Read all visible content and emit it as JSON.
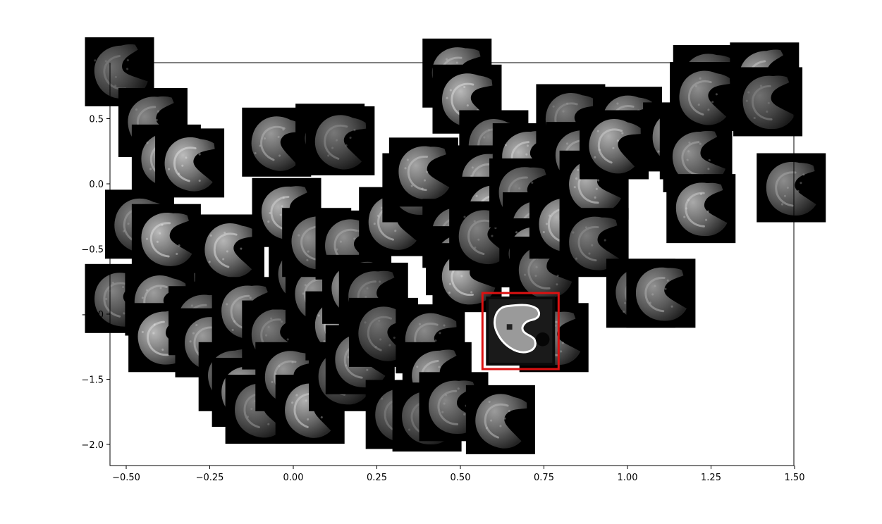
{
  "chart_data": {
    "type": "scatter",
    "title": "",
    "xlabel": "",
    "ylabel": "",
    "xlim": [
      -0.55,
      1.55
    ],
    "ylim": [
      -2.15,
      0.9
    ],
    "grid": false,
    "xticks": [
      -0.5,
      -0.25,
      0.0,
      0.25,
      0.5,
      0.75,
      1.0,
      1.25,
      1.5
    ],
    "xtick_labels": [
      "−0.50",
      "−0.25",
      "0.00",
      "0.25",
      "0.50",
      "0.75",
      "1.00",
      "1.25",
      "1.50"
    ],
    "yticks": [
      0.5,
      0.0,
      -0.5,
      -1.0,
      -1.5,
      -2.0
    ],
    "ytick_labels": [
      "0.5",
      "0.0",
      "−0.5",
      "−1.0",
      "−1.5",
      "−2.0"
    ],
    "marker": "image-thumbnail",
    "highlight_color": "#dd1111",
    "highlighted": {
      "x": 0.68,
      "y": -1.13
    },
    "points": [
      {
        "x": -0.52,
        "y": 0.86
      },
      {
        "x": -0.42,
        "y": 0.47
      },
      {
        "x": -0.38,
        "y": 0.19
      },
      {
        "x": -0.31,
        "y": 0.16
      },
      {
        "x": -0.46,
        "y": -0.31
      },
      {
        "x": -0.33,
        "y": -0.55
      },
      {
        "x": -0.38,
        "y": -0.42
      },
      {
        "x": -0.52,
        "y": -0.88
      },
      {
        "x": -0.4,
        "y": -0.9
      },
      {
        "x": -0.39,
        "y": -1.18
      },
      {
        "x": -0.27,
        "y": -1.05
      },
      {
        "x": -0.25,
        "y": -1.22
      },
      {
        "x": -0.19,
        "y": -0.5
      },
      {
        "x": -0.18,
        "y": -1.48
      },
      {
        "x": -0.14,
        "y": -0.98
      },
      {
        "x": -0.14,
        "y": -1.6
      },
      {
        "x": -0.1,
        "y": -1.73
      },
      {
        "x": -0.05,
        "y": 0.32
      },
      {
        "x": -0.02,
        "y": -0.22
      },
      {
        "x": -0.05,
        "y": -1.16
      },
      {
        "x": -0.01,
        "y": -1.48
      },
      {
        "x": 0.05,
        "y": -1.73
      },
      {
        "x": 0.03,
        "y": -0.7
      },
      {
        "x": 0.08,
        "y": -0.85
      },
      {
        "x": 0.11,
        "y": 0.35
      },
      {
        "x": 0.14,
        "y": 0.33
      },
      {
        "x": 0.07,
        "y": -0.45
      },
      {
        "x": 0.14,
        "y": -1.09
      },
      {
        "x": 0.15,
        "y": -1.48
      },
      {
        "x": 0.17,
        "y": -0.47
      },
      {
        "x": 0.19,
        "y": -0.81
      },
      {
        "x": 0.24,
        "y": -0.87
      },
      {
        "x": 0.2,
        "y": -1.35
      },
      {
        "x": 0.3,
        "y": -0.29
      },
      {
        "x": 0.27,
        "y": -1.14
      },
      {
        "x": 0.37,
        "y": -0.03
      },
      {
        "x": 0.39,
        "y": 0.09
      },
      {
        "x": 0.32,
        "y": -1.77
      },
      {
        "x": 0.41,
        "y": -1.19
      },
      {
        "x": 0.43,
        "y": -1.48
      },
      {
        "x": 0.4,
        "y": -1.79
      },
      {
        "x": 0.49,
        "y": -0.38
      },
      {
        "x": 0.5,
        "y": -0.59
      },
      {
        "x": 0.52,
        "y": -0.72
      },
      {
        "x": 0.48,
        "y": -1.71
      },
      {
        "x": 0.49,
        "y": 0.85
      },
      {
        "x": 0.52,
        "y": 0.65
      },
      {
        "x": 0.6,
        "y": 0.3
      },
      {
        "x": 0.58,
        "y": 0.03
      },
      {
        "x": 0.6,
        "y": -0.21
      },
      {
        "x": 0.57,
        "y": -0.4
      },
      {
        "x": 0.62,
        "y": -1.81
      },
      {
        "x": 0.7,
        "y": 0.2
      },
      {
        "x": 0.69,
        "y": -0.07
      },
      {
        "x": 0.73,
        "y": -0.33
      },
      {
        "x": 0.72,
        "y": -0.53
      },
      {
        "x": 0.75,
        "y": -0.67
      },
      {
        "x": 0.78,
        "y": -1.18
      },
      {
        "x": 0.81,
        "y": -0.31
      },
      {
        "x": 0.83,
        "y": 0.5
      },
      {
        "x": 0.86,
        "y": 0.21
      },
      {
        "x": 0.9,
        "y": -0.01
      },
      {
        "x": 0.9,
        "y": -0.45
      },
      {
        "x": 1.0,
        "y": 0.48
      },
      {
        "x": 0.96,
        "y": 0.3
      },
      {
        "x": 1.04,
        "y": -0.84
      },
      {
        "x": 1.1,
        "y": -0.84
      },
      {
        "x": 1.15,
        "y": 0.36
      },
      {
        "x": 1.2,
        "y": 0.3
      },
      {
        "x": 1.21,
        "y": 0.2
      },
      {
        "x": 1.22,
        "y": -0.19
      },
      {
        "x": 1.24,
        "y": 0.8
      },
      {
        "x": 1.23,
        "y": 0.67
      },
      {
        "x": 1.41,
        "y": 0.82
      },
      {
        "x": 1.42,
        "y": 0.63
      },
      {
        "x": 1.49,
        "y": -0.03
      }
    ]
  }
}
